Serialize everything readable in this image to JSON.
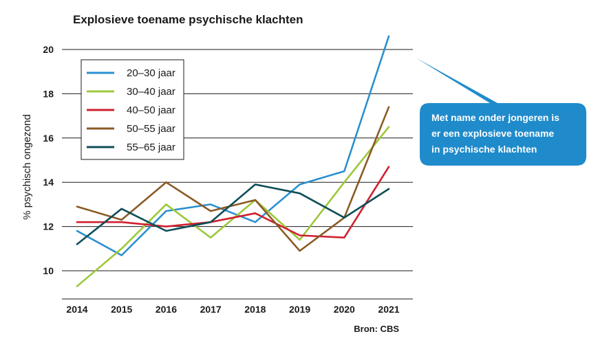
{
  "chart_data": {
    "type": "line",
    "title": "Explosieve toename psychische klachten",
    "xlabel": "",
    "ylabel": "% psychisch ongezond",
    "x": [
      2014,
      2015,
      2016,
      2017,
      2018,
      2019,
      2020,
      2021
    ],
    "x_tick_labels": [
      "2014",
      "2015",
      "2016",
      "2017",
      "2018",
      "2019",
      "2020",
      "2021"
    ],
    "ylim": [
      9,
      21
    ],
    "y_ticks": [
      10,
      12,
      14,
      16,
      18,
      20
    ],
    "y_tick_labels": [
      "10",
      "12",
      "14",
      "16",
      "18",
      "20"
    ],
    "grid": "horizontal",
    "legend_position": "top-left",
    "series": [
      {
        "name": "20–30 jaar",
        "color": "#2b8fcf",
        "values": [
          11.8,
          10.7,
          12.7,
          13.0,
          12.2,
          13.9,
          14.5,
          20.6
        ]
      },
      {
        "name": "30–40 jaar",
        "color": "#9cc83a",
        "values": [
          9.3,
          11.0,
          13.0,
          11.5,
          13.2,
          11.4,
          14.0,
          16.5
        ]
      },
      {
        "name": "40–50 jaar",
        "color": "#d0202f",
        "values": [
          12.2,
          12.2,
          12.0,
          12.2,
          12.6,
          11.6,
          11.5,
          14.7
        ]
      },
      {
        "name": "50–55 jaar",
        "color": "#8b5a24",
        "values": [
          12.9,
          12.3,
          14.0,
          12.7,
          13.2,
          10.9,
          12.4,
          17.4
        ]
      },
      {
        "name": "55–65 jaar",
        "color": "#0d4e57",
        "values": [
          11.2,
          12.8,
          11.8,
          12.2,
          13.9,
          13.5,
          12.4,
          13.7
        ]
      }
    ],
    "source": "Bron: CBS",
    "callout": {
      "lines": [
        "Met name onder jongeren is",
        "er een explosieve toename",
        "in psychische klachten"
      ],
      "color": "#1f8bcb"
    }
  }
}
